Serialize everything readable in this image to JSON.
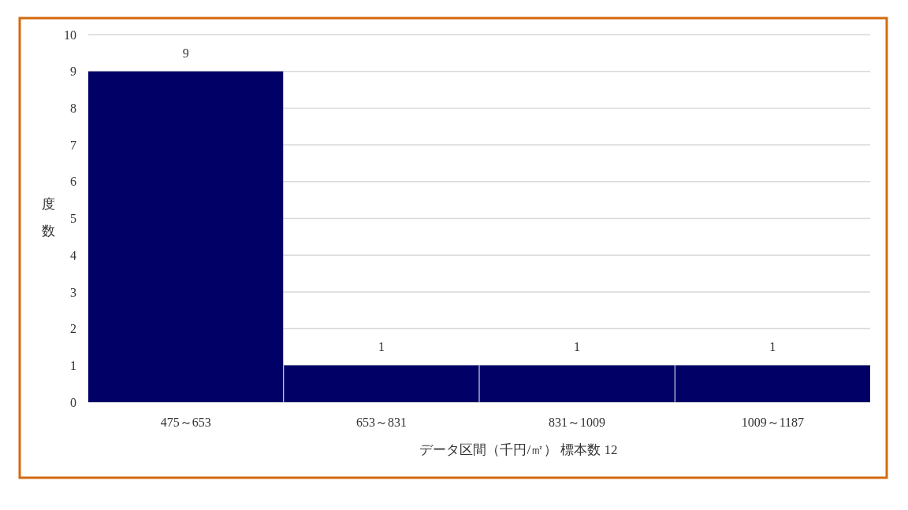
{
  "chart_data": {
    "type": "bar",
    "categories": [
      "475～653",
      "653～831",
      "831～1009",
      "1009～1187"
    ],
    "values": [
      9,
      1,
      1,
      1
    ],
    "color": "#000066",
    "xlabel": "データ区間（千円/㎡） 標本数 12",
    "ylabel": "度数",
    "ylim": [
      0,
      10
    ],
    "yticks": [
      0,
      1,
      2,
      3,
      4,
      5,
      6,
      7,
      8,
      9,
      10
    ],
    "grid": "y",
    "data_labels": true
  }
}
